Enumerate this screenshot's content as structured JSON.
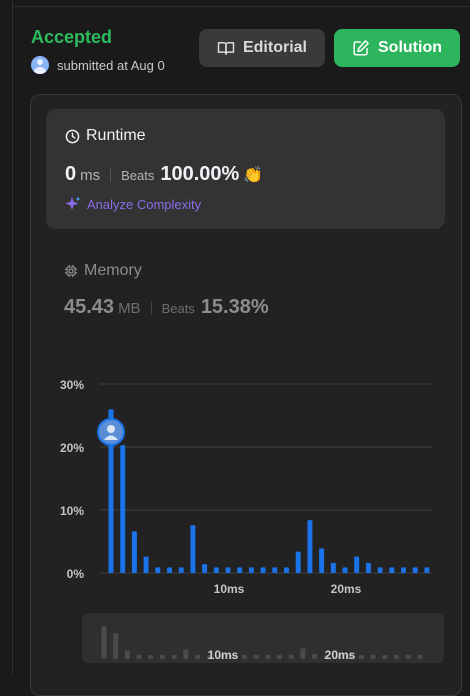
{
  "submission": {
    "status": "Accepted",
    "submitted_text": "submitted at Aug 0"
  },
  "buttons": {
    "editorial": "Editorial",
    "solution": "Solution"
  },
  "runtime": {
    "title": "Runtime",
    "value": "0",
    "unit": "ms",
    "beats_label": "Beats",
    "beats_value": "100.00%",
    "analyze": "Analyze Complexity"
  },
  "memory": {
    "title": "Memory",
    "value": "45.43",
    "unit": "MB",
    "beats_label": "Beats",
    "beats_value": "15.38%"
  },
  "colors": {
    "accepted": "#2cbb5d",
    "solution_button": "#2db55d",
    "bar": "#1a73e8",
    "analyze": "#8a6de9"
  },
  "icons": {
    "editorial": "book-icon",
    "solution": "edit-icon",
    "runtime": "clock-icon",
    "memory": "chip-icon",
    "analyze": "sparkle-icon",
    "beats_badge": "clap-icon"
  },
  "chart_data": {
    "type": "bar",
    "y_tick_labels": [
      "30%",
      "20%",
      "10%",
      "0%"
    ],
    "y_ticks": [
      30,
      20,
      10,
      0
    ],
    "ylim": [
      0,
      30
    ],
    "x_tick_labels": [
      "10ms",
      "20ms"
    ],
    "x_ticks": [
      10,
      20
    ],
    "x": [
      0,
      1,
      2,
      3,
      4,
      5,
      6,
      7,
      8,
      9,
      10,
      11,
      12,
      13,
      14,
      15,
      16,
      17,
      18,
      19,
      20,
      21,
      22,
      23,
      24,
      25,
      26,
      27
    ],
    "values": [
      26.0,
      20.3,
      6.6,
      2.6,
      0.9,
      0.9,
      0.9,
      7.6,
      1.4,
      0.9,
      0.9,
      0.9,
      0.9,
      0.9,
      0.9,
      0.9,
      3.4,
      8.4,
      3.9,
      1.6,
      0.9,
      2.6,
      1.6,
      0.9,
      0.9,
      0.9,
      0.9,
      0.9
    ],
    "highlight_index": 0,
    "grid": true,
    "mini_x_tick_labels": [
      "10ms",
      "20ms"
    ]
  }
}
